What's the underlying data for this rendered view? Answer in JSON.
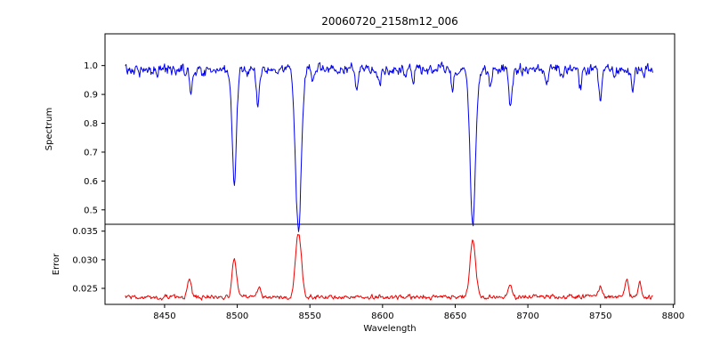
{
  "chart_data": {
    "type": "line",
    "title": "20060720_2158m12_006",
    "xlabel": "Wavelength",
    "x_range": [
      8409,
      8801
    ],
    "data_x_start": 8423,
    "data_x_end": 8786,
    "x_ticks": [
      8450,
      8500,
      8550,
      8600,
      8650,
      8700,
      8750,
      8800
    ],
    "x_tick_labels": [
      "8450",
      "8500",
      "8550",
      "8600",
      "8650",
      "8700",
      "8750",
      "8800"
    ],
    "grid": false,
    "legend": "none",
    "panels": [
      {
        "name": "spectrum",
        "ylabel": "Spectrum",
        "color": "#0000ee",
        "y_range": [
          0.45,
          1.11
        ],
        "y_ticks": [
          0.5,
          0.6,
          0.7,
          0.8,
          0.9,
          1.0
        ],
        "y_tick_labels": [
          "0.5",
          "0.6",
          "0.7",
          "0.8",
          "0.9",
          "1.0"
        ],
        "base_level": 0.985,
        "noise_amplitude": 0.022,
        "absorption_lines": [
          {
            "center": 8468.0,
            "depth": 0.07,
            "width": 1.0
          },
          {
            "center": 8498.0,
            "depth": 0.385,
            "width": 1.5
          },
          {
            "center": 8514.0,
            "depth": 0.12,
            "width": 1.1
          },
          {
            "center": 8542.1,
            "depth": 0.545,
            "width": 2.0
          },
          {
            "center": 8552.0,
            "depth": 0.05,
            "width": 1.0
          },
          {
            "center": 8582.0,
            "depth": 0.07,
            "width": 1.0
          },
          {
            "center": 8598.0,
            "depth": 0.06,
            "width": 1.0
          },
          {
            "center": 8621.0,
            "depth": 0.05,
            "width": 0.9
          },
          {
            "center": 8648.0,
            "depth": 0.06,
            "width": 0.9
          },
          {
            "center": 8662.1,
            "depth": 0.535,
            "width": 1.9
          },
          {
            "center": 8674.0,
            "depth": 0.05,
            "width": 0.9
          },
          {
            "center": 8688.0,
            "depth": 0.13,
            "width": 1.1
          },
          {
            "center": 8713.0,
            "depth": 0.05,
            "width": 0.9
          },
          {
            "center": 8736.0,
            "depth": 0.06,
            "width": 0.9
          },
          {
            "center": 8750.0,
            "depth": 0.11,
            "width": 1.0
          },
          {
            "center": 8772.0,
            "depth": 0.07,
            "width": 0.9
          }
        ]
      },
      {
        "name": "error",
        "ylabel": "Error",
        "color": "#ee0000",
        "y_range": [
          0.0222,
          0.0362
        ],
        "y_ticks": [
          0.025,
          0.03,
          0.035
        ],
        "y_tick_labels": [
          "0.025",
          "0.030",
          "0.035"
        ],
        "base_level": 0.0235,
        "noise_amplitude": 0.00045,
        "peaks": [
          {
            "center": 8467.0,
            "height": 0.0032,
            "width": 1.2
          },
          {
            "center": 8498.0,
            "height": 0.0065,
            "width": 1.6
          },
          {
            "center": 8515.0,
            "height": 0.0013,
            "width": 1.2
          },
          {
            "center": 8542.1,
            "height": 0.0112,
            "width": 2.0
          },
          {
            "center": 8662.1,
            "height": 0.01,
            "width": 1.9
          },
          {
            "center": 8688.0,
            "height": 0.0022,
            "width": 1.3
          },
          {
            "center": 8750.0,
            "height": 0.0018,
            "width": 1.2
          },
          {
            "center": 8768.0,
            "height": 0.003,
            "width": 1.3
          },
          {
            "center": 8777.0,
            "height": 0.0024,
            "width": 1.0
          }
        ]
      }
    ]
  }
}
